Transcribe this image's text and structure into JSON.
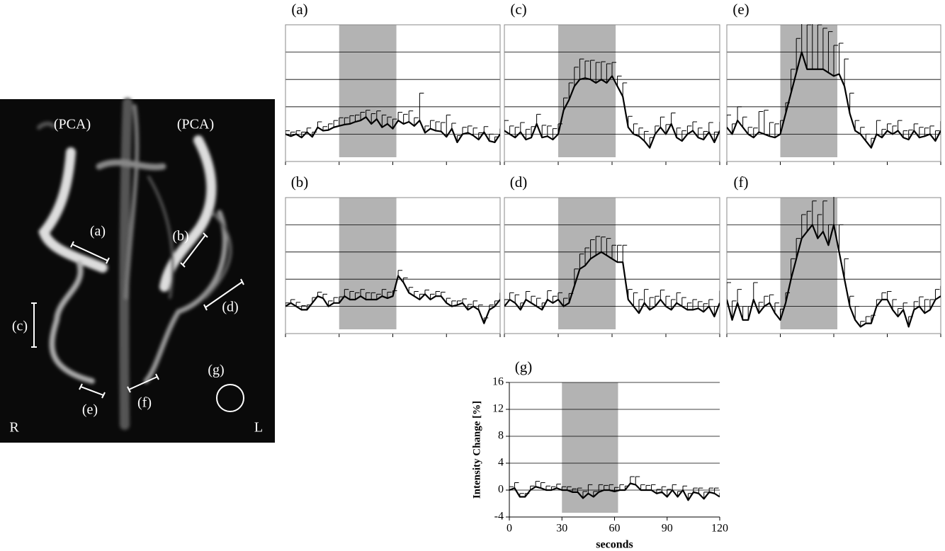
{
  "angiogram": {
    "labels": [
      "(PCA)",
      "(PCA)",
      "(a)",
      "(b)",
      "(c)",
      "(d)",
      "(e)",
      "(f)",
      "(g)",
      "R",
      "L"
    ]
  },
  "chart_data": [
    {
      "type": "line",
      "title": "(a)",
      "x": [
        0,
        3,
        6,
        9,
        12,
        15,
        18,
        21,
        24,
        27,
        30,
        33,
        36,
        39,
        42,
        45,
        48,
        51,
        54,
        57,
        60,
        63,
        66,
        69,
        72,
        75,
        78,
        81,
        84,
        87,
        90,
        93,
        96,
        99,
        102,
        105,
        108,
        111,
        114,
        117,
        120
      ],
      "series": [
        {
          "color": "#000000",
          "values": [
            0,
            -0.3,
            0,
            -0.5,
            0.3,
            -0.4,
            1,
            0.5,
            0.6,
            1,
            1.2,
            1.4,
            1.5,
            1.8,
            2,
            2.5,
            1.5,
            2.2,
            1,
            1.5,
            0.8,
            2,
            1.5,
            1.8,
            1.2,
            2,
            0.2,
            0.8,
            0.5,
            0.4,
            -0.4,
            0.8,
            -1.2,
            0,
            0.2,
            -0.2,
            -0.8,
            0.3,
            -1,
            -1.2,
            0
          ],
          "errors": [
            0.5,
            0.6,
            0.5,
            0.8,
            0.6,
            0.7,
            0.8,
            0.6,
            0.9,
            1,
            1.2,
            1,
            1.2,
            1,
            1.2,
            1,
            1.5,
            1.2,
            1.8,
            1,
            1.4,
            1.2,
            1.4,
            1.6,
            1.2,
            4,
            1,
            1.2,
            1.3,
            1.3,
            3.2,
            0.8,
            1,
            1,
            1,
            1.1,
            1,
            0.8,
            1,
            0.8,
            0.8
          ]
        }
      ],
      "shaded_range": [
        30,
        62
      ],
      "shade_color": "#b3b3b3",
      "xlim": [
        0,
        120
      ],
      "xticks": [
        0,
        30,
        60,
        90,
        120
      ],
      "ylim": [
        -4,
        16
      ],
      "yticks": [
        -4,
        0,
        4,
        8,
        12,
        16
      ],
      "grid": true,
      "frame": true,
      "tick_labels": false
    },
    {
      "type": "line",
      "title": "(b)",
      "x": [
        0,
        3,
        6,
        9,
        12,
        15,
        18,
        21,
        24,
        27,
        30,
        33,
        36,
        39,
        42,
        45,
        48,
        51,
        54,
        57,
        60,
        63,
        66,
        69,
        72,
        75,
        78,
        81,
        84,
        87,
        90,
        93,
        96,
        99,
        102,
        105,
        108,
        111,
        114,
        117,
        120
      ],
      "series": [
        {
          "color": "#000000",
          "values": [
            0,
            0.5,
            0,
            -0.5,
            -0.5,
            0.5,
            1.5,
            1.2,
            0,
            0.5,
            0.5,
            1.5,
            1,
            1,
            1.5,
            1,
            1,
            1,
            1.5,
            1.2,
            1.5,
            4.5,
            3.5,
            2,
            1.5,
            1,
            1.8,
            1,
            1.5,
            1.5,
            0.5,
            0,
            0.2,
            0.5,
            -0.5,
            0,
            -0.5,
            -2.5,
            -0.5,
            0,
            1
          ],
          "errors": [
            0.5,
            0.5,
            0.6,
            0.6,
            0.7,
            0.8,
            0.6,
            0.6,
            0.8,
            0.8,
            0.9,
            1,
            1.2,
            1,
            1,
            1,
            1,
            0.8,
            1,
            0.9,
            0.8,
            0.8,
            0.7,
            0.8,
            0.7,
            0.8,
            0.6,
            0.8,
            0.7,
            0.6,
            0.7,
            0.8,
            0.6,
            0.6,
            0.8,
            0.8,
            0.7,
            0.8,
            0.7,
            0.8,
            1
          ]
        }
      ],
      "shaded_range": [
        30,
        62
      ],
      "shade_color": "#b3b3b3",
      "xlim": [
        0,
        120
      ],
      "xticks": [
        0,
        30,
        60,
        90,
        120
      ],
      "ylim": [
        -4,
        16
      ],
      "yticks": [
        -4,
        0,
        4,
        8,
        12,
        16
      ],
      "grid": true,
      "frame": true,
      "tick_labels": false
    },
    {
      "type": "line",
      "title": "(c)",
      "x": [
        0,
        3,
        6,
        9,
        12,
        15,
        18,
        21,
        24,
        27,
        30,
        33,
        36,
        39,
        42,
        45,
        48,
        51,
        54,
        57,
        60,
        63,
        66,
        69,
        72,
        75,
        78,
        81,
        84,
        87,
        90,
        93,
        96,
        99,
        102,
        105,
        108,
        111,
        114,
        117,
        120
      ],
      "series": [
        {
          "color": "#000000",
          "values": [
            0.5,
            0,
            -0.5,
            0.3,
            -0.8,
            -0.5,
            1.5,
            -0.5,
            -0.3,
            -0.8,
            0,
            3.5,
            5,
            7,
            8,
            8.2,
            8,
            7.5,
            8,
            7.5,
            8.5,
            7,
            5.5,
            1,
            0,
            -0.3,
            -1,
            -2,
            0,
            1,
            0,
            1.5,
            -0.5,
            -1,
            0,
            0.5,
            -0.5,
            -0.8,
            0.3,
            -1.2,
            0.5
          ],
          "errors": [
            1.5,
            1.2,
            1.5,
            1.4,
            1.5,
            1.6,
            1.4,
            1.8,
            1.5,
            1.6,
            1.5,
            1.8,
            2.5,
            2.8,
            3,
            2.5,
            2.8,
            3,
            2.6,
            2.8,
            2,
            1.5,
            2,
            1.6,
            1.5,
            1.2,
            1.4,
            1.5,
            1.2,
            1.5,
            1.4,
            1.6,
            1.4,
            1.5,
            1.2,
            1.3,
            1.4,
            1.2,
            1.4,
            1.5,
            1.3
          ]
        }
      ],
      "shaded_range": [
        30,
        62
      ],
      "shade_color": "#b3b3b3",
      "xlim": [
        0,
        120
      ],
      "xticks": [
        0,
        30,
        60,
        90,
        120
      ],
      "ylim": [
        -4,
        16
      ],
      "yticks": [
        -4,
        0,
        4,
        8,
        12,
        16
      ],
      "grid": true,
      "frame": true,
      "tick_labels": false
    },
    {
      "type": "line",
      "title": "(d)",
      "x": [
        0,
        3,
        6,
        9,
        12,
        15,
        18,
        21,
        24,
        27,
        30,
        33,
        36,
        39,
        42,
        45,
        48,
        51,
        54,
        57,
        60,
        63,
        66,
        69,
        72,
        75,
        78,
        81,
        84,
        87,
        90,
        93,
        96,
        99,
        102,
        105,
        108,
        111,
        114,
        117,
        120
      ],
      "series": [
        {
          "color": "#000000",
          "values": [
            0,
            1,
            0.5,
            -0.5,
            1,
            0.5,
            0,
            -0.5,
            1,
            0.5,
            1,
            0,
            0.5,
            3,
            5.5,
            6,
            7,
            7.5,
            8,
            7.5,
            7,
            6.5,
            6.5,
            1,
            0,
            -1,
            0.5,
            -0.5,
            0,
            1,
            0,
            -0.5,
            0.5,
            0,
            -0.5,
            -0.5,
            -0.3,
            -0.8,
            0,
            -1.5,
            0.5
          ],
          "errors": [
            1,
            1,
            1.2,
            1,
            1.2,
            1,
            1.2,
            1,
            1.3,
            1,
            1,
            1.2,
            1.4,
            2.5,
            2.2,
            2.6,
            2.8,
            2.8,
            2.2,
            2.5,
            2,
            2.5,
            2.5,
            1.5,
            2,
            2,
            2,
            1.8,
            1.5,
            1.4,
            1.5,
            1.5,
            1.5,
            1.3,
            1,
            1.5,
            1,
            1.2,
            1,
            1.5,
            1.8
          ]
        }
      ],
      "shaded_range": [
        30,
        62
      ],
      "shade_color": "#b3b3b3",
      "xlim": [
        0,
        120
      ],
      "xticks": [
        0,
        30,
        60,
        90,
        120
      ],
      "ylim": [
        -4,
        16
      ],
      "yticks": [
        -4,
        0,
        4,
        8,
        12,
        16
      ],
      "grid": true,
      "frame": true,
      "tick_labels": false
    },
    {
      "type": "line",
      "title": "(e)",
      "x": [
        0,
        3,
        6,
        9,
        12,
        15,
        18,
        21,
        24,
        27,
        30,
        33,
        36,
        39,
        42,
        45,
        48,
        51,
        54,
        57,
        60,
        63,
        66,
        69,
        72,
        75,
        78,
        81,
        84,
        87,
        90,
        93,
        96,
        99,
        102,
        105,
        108,
        111,
        114,
        117,
        120
      ],
      "series": [
        {
          "color": "#000000",
          "values": [
            1,
            0,
            2,
            1,
            0,
            -0.5,
            0.3,
            0,
            -0.3,
            -0.5,
            0,
            3,
            6,
            9,
            12,
            9.5,
            9.5,
            9.5,
            9.5,
            9,
            8.5,
            8.8,
            7,
            3,
            0.5,
            0,
            -1,
            -2,
            0,
            -0.5,
            0.5,
            0,
            0.5,
            -0.5,
            -0.8,
            0.5,
            -0.5,
            -0.3,
            0,
            -1,
            0.5
          ],
          "errors": [
            1.8,
            1.5,
            2,
            1.5,
            1,
            1.4,
            3,
            3.5,
            2,
            2,
            2,
            1.6,
            3.5,
            5,
            5,
            6.5,
            6.8,
            6.5,
            6,
            6,
            4.5,
            4.5,
            4,
            3,
            1.5,
            1,
            1,
            1.4,
            2,
            1.2,
            1,
            1.2,
            1.5,
            1,
            1.4,
            1,
            1.5,
            1.2,
            1.2,
            1.5,
            1.4
          ]
        }
      ],
      "shaded_range": [
        30,
        62
      ],
      "shade_color": "#b3b3b3",
      "xlim": [
        0,
        120
      ],
      "xticks": [
        0,
        30,
        60,
        90,
        120
      ],
      "ylim": [
        -4,
        16
      ],
      "yticks": [
        -4,
        0,
        4,
        8,
        12,
        16
      ],
      "grid": true,
      "frame": true,
      "tick_labels": false
    },
    {
      "type": "line",
      "title": "(f)",
      "x": [
        0,
        3,
        6,
        9,
        12,
        15,
        18,
        21,
        24,
        27,
        30,
        33,
        36,
        39,
        42,
        45,
        48,
        51,
        54,
        57,
        60,
        63,
        66,
        69,
        72,
        75,
        78,
        81,
        84,
        87,
        90,
        93,
        96,
        99,
        102,
        105,
        108,
        111,
        114,
        117,
        120
      ],
      "series": [
        {
          "color": "#000000",
          "values": [
            1,
            -2,
            0.5,
            -2,
            -2,
            1,
            -1,
            0,
            0.5,
            -1,
            -2,
            0.5,
            4,
            7,
            10,
            11,
            12,
            10,
            11,
            9,
            12,
            8,
            4,
            0,
            -2,
            -3,
            -2.5,
            -2.5,
            0,
            1,
            1,
            -0.5,
            -1.5,
            -0.5,
            -3,
            -0.5,
            0,
            -1,
            -0.5,
            1,
            1.5
          ],
          "errors": [
            2.5,
            2.8,
            2,
            2,
            2,
            2.5,
            1.6,
            1.5,
            1.2,
            1.5,
            1.6,
            1.5,
            3,
            3,
            3.5,
            3,
            3.5,
            3.5,
            4.5,
            3,
            4.5,
            4,
            3,
            1.5,
            2,
            0.8,
            1,
            1.2,
            1,
            1,
            1.2,
            1.5,
            1.2,
            1,
            1.5,
            1.2,
            1.4,
            2,
            1.5,
            1.5,
            1.5
          ]
        }
      ],
      "shaded_range": [
        30,
        62
      ],
      "shade_color": "#b3b3b3",
      "xlim": [
        0,
        120
      ],
      "xticks": [
        0,
        30,
        60,
        90,
        120
      ],
      "ylim": [
        -4,
        16
      ],
      "yticks": [
        -4,
        0,
        4,
        8,
        12,
        16
      ],
      "grid": true,
      "frame": true,
      "tick_labels": false
    },
    {
      "type": "line",
      "title": "(g)",
      "x_label": "seconds",
      "y_label": "Intensity Change [%]",
      "x": [
        0,
        3,
        6,
        9,
        12,
        15,
        18,
        21,
        24,
        27,
        30,
        33,
        36,
        39,
        42,
        45,
        48,
        51,
        54,
        57,
        60,
        63,
        66,
        69,
        72,
        75,
        78,
        81,
        84,
        87,
        90,
        93,
        96,
        99,
        102,
        105,
        108,
        111,
        114,
        117,
        120
      ],
      "series": [
        {
          "color": "#000000",
          "values": [
            0,
            0.3,
            -1,
            -1,
            0,
            0.5,
            0.3,
            0,
            0,
            0.3,
            0,
            0,
            -0.3,
            -0.3,
            -1.2,
            -0.5,
            -1,
            -0.3,
            0,
            0,
            -0.2,
            0,
            0,
            1,
            0.8,
            0,
            0,
            0,
            -0.5,
            -0.3,
            -1,
            0,
            -1,
            0,
            -1.5,
            -0.3,
            -0.5,
            -1.3,
            -0.3,
            -0.5,
            -1
          ],
          "errors": [
            0.5,
            0.8,
            0.5,
            0.5,
            0.6,
            0.8,
            0.8,
            0.6,
            0.5,
            0.6,
            0.5,
            0.5,
            0.5,
            0.6,
            1,
            1.3,
            0.8,
            1.1,
            0.7,
            0.8,
            0.6,
            0.8,
            0.6,
            1,
            1.2,
            0.8,
            0.7,
            0.8,
            0.6,
            0.8,
            1.1,
            0.8,
            0.8,
            0.6,
            1,
            0.6,
            0.8,
            1,
            0.6,
            0.8,
            0.6
          ]
        }
      ],
      "shaded_range": [
        30,
        62
      ],
      "shade_color": "#b3b3b3",
      "xlim": [
        0,
        120
      ],
      "xticks": [
        0,
        30,
        60,
        90,
        120
      ],
      "ylim": [
        -4,
        16
      ],
      "yticks": [
        -4,
        0,
        4,
        8,
        12,
        16
      ],
      "grid": true,
      "frame": false,
      "tick_labels": true
    }
  ]
}
